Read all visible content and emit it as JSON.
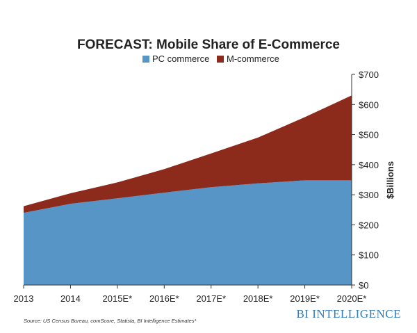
{
  "chart_data": {
    "type": "area",
    "stacked": true,
    "title": "FORECAST: Mobile Share of E-Commerce",
    "categories": [
      "2013",
      "2014",
      "2015E*",
      "2016E*",
      "2017E*",
      "2018E*",
      "2019E*",
      "2020E*"
    ],
    "series": [
      {
        "name": "PC commerce",
        "color": "#5695c5",
        "values": [
          240,
          270,
          288,
          307,
          325,
          338,
          348,
          348
        ]
      },
      {
        "name": "M-commerce",
        "color": "#8c2a1c",
        "values": [
          22,
          35,
          53,
          78,
          112,
          152,
          210,
          282
        ]
      }
    ],
    "ylabel": "$Billions",
    "xlabel": "",
    "ylim": [
      0,
      700
    ],
    "yticks": [
      0,
      100,
      200,
      300,
      400,
      500,
      600,
      700
    ],
    "ytick_labels": [
      "$0",
      "$100",
      "$200",
      "$300",
      "$400",
      "$500",
      "$600",
      "$700"
    ],
    "legend_position": "top",
    "grid": false,
    "axis_side": "right"
  },
  "source": "Source: US Census Bureau, comScore, Statista, BI Intelligence Estimates*",
  "brand": "BI INTELLIGENCE"
}
